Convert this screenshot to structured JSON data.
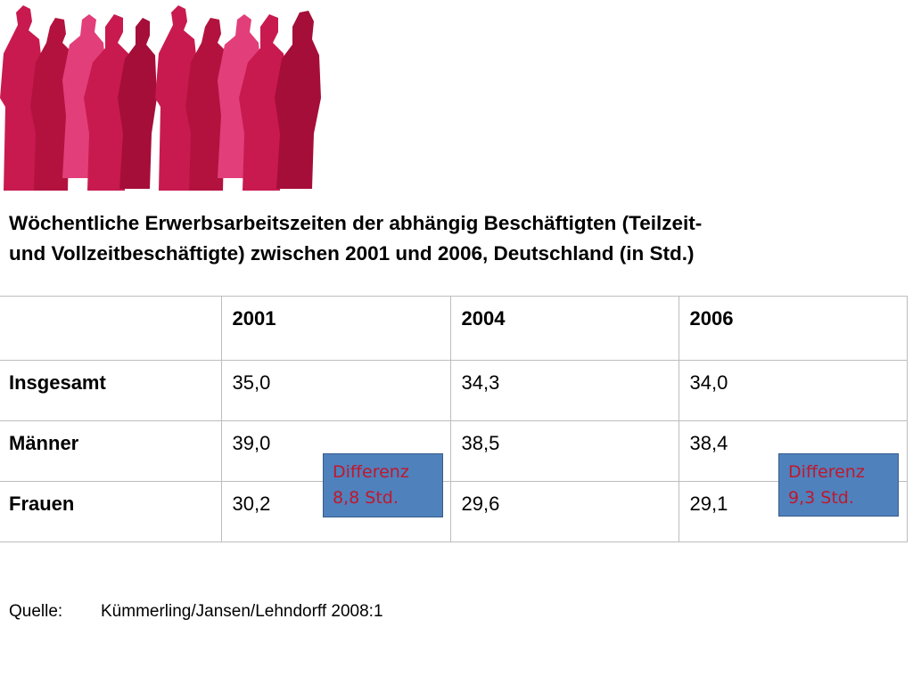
{
  "title": {
    "line1": "Wöchentliche Erwerbsarbeitszeiten der abhängig Beschäftigten (Teilzeit-",
    "line2": "und Vollzeitbeschäftigte) zwischen 2001 und 2006, Deutschland (in Std.)"
  },
  "colors": {
    "silhouette_primary": "#c81a4f",
    "silhouette_secondary": "#e23f7a",
    "box_fill": "#4f81bd",
    "box_text": "#c0182c",
    "grid": "#bdbdbd"
  },
  "table": {
    "headers": [
      "",
      "2001",
      "2004",
      "2006"
    ],
    "rows": [
      {
        "label": "Insgesamt",
        "values": [
          "35,0",
          "34,3",
          "34,0"
        ]
      },
      {
        "label": "Männer",
        "values": [
          "39,0",
          "38,5",
          "38,4"
        ]
      },
      {
        "label": "Frauen",
        "values": [
          "30,2",
          "29,6",
          "29,1"
        ]
      }
    ]
  },
  "differences": [
    {
      "line1": "Differenz",
      "line2": "8,8 Std."
    },
    {
      "line1": "Differenz",
      "line2": "9,3 Std."
    }
  ],
  "source": {
    "label": "Quelle:",
    "text": "Kümmerling/Jansen/Lehndorff 2008:1"
  }
}
